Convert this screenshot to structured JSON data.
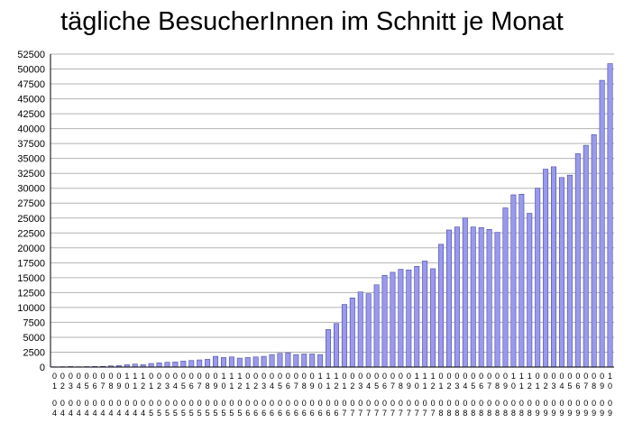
{
  "chart_data": {
    "type": "bar",
    "title": "tägliche BesucherInnen im Schnitt je Monat",
    "xlabel": "",
    "ylabel": "",
    "ylim": [
      0,
      52500
    ],
    "ytick_step": 2500,
    "grid": true,
    "legend": "none",
    "colors": {
      "bar": "#9999ee",
      "bar_stroke": "#4a4aa0",
      "grid": "#b3b3b3",
      "axis": "#000000"
    },
    "categories": [
      "01\n04",
      "02\n04",
      "03\n04",
      "04\n04",
      "05\n04",
      "06\n04",
      "07\n04",
      "08\n04",
      "09\n04",
      "10\n04",
      "11\n04",
      "12\n04",
      "01\n05",
      "02\n05",
      "03\n05",
      "04\n05",
      "05\n05",
      "06\n05",
      "07\n05",
      "08\n05",
      "09\n05",
      "10\n05",
      "11\n05",
      "12\n05",
      "01\n06",
      "02\n06",
      "03\n06",
      "04\n06",
      "05\n06",
      "06\n06",
      "07\n06",
      "08\n06",
      "09\n06",
      "10\n06",
      "11\n06",
      "12\n06",
      "01\n07",
      "02\n07",
      "03\n07",
      "04\n07",
      "05\n07",
      "06\n07",
      "07\n07",
      "08\n07",
      "09\n07",
      "10\n07",
      "11\n07",
      "12\n07",
      "01\n08",
      "02\n08",
      "03\n08",
      "04\n08",
      "05\n08",
      "06\n08",
      "07\n08",
      "08\n08",
      "09\n08",
      "10\n08",
      "11\n08",
      "12\n08",
      "01\n09",
      "02\n09",
      "03\n09",
      "04\n09",
      "05\n09",
      "06\n09",
      "07\n09",
      "08\n09",
      "09\n09",
      "10\n09"
    ],
    "values": [
      50,
      70,
      90,
      60,
      80,
      100,
      120,
      200,
      250,
      400,
      500,
      400,
      600,
      700,
      800,
      850,
      1000,
      1100,
      1200,
      1300,
      1800,
      1600,
      1700,
      1500,
      1600,
      1700,
      1800,
      2100,
      2300,
      2400,
      2100,
      2200,
      2200,
      2100,
      6300,
      7300,
      10500,
      11600,
      12600,
      12300,
      13800,
      15400,
      15900,
      16400,
      16300,
      16900,
      17800,
      16500,
      20600,
      23000,
      23500,
      25000,
      23500,
      23400,
      23100,
      22600,
      26700,
      28900,
      29000,
      25800,
      30000,
      33200,
      33600,
      31800,
      32200,
      35800,
      37200,
      39000,
      48100,
      50900
    ]
  }
}
